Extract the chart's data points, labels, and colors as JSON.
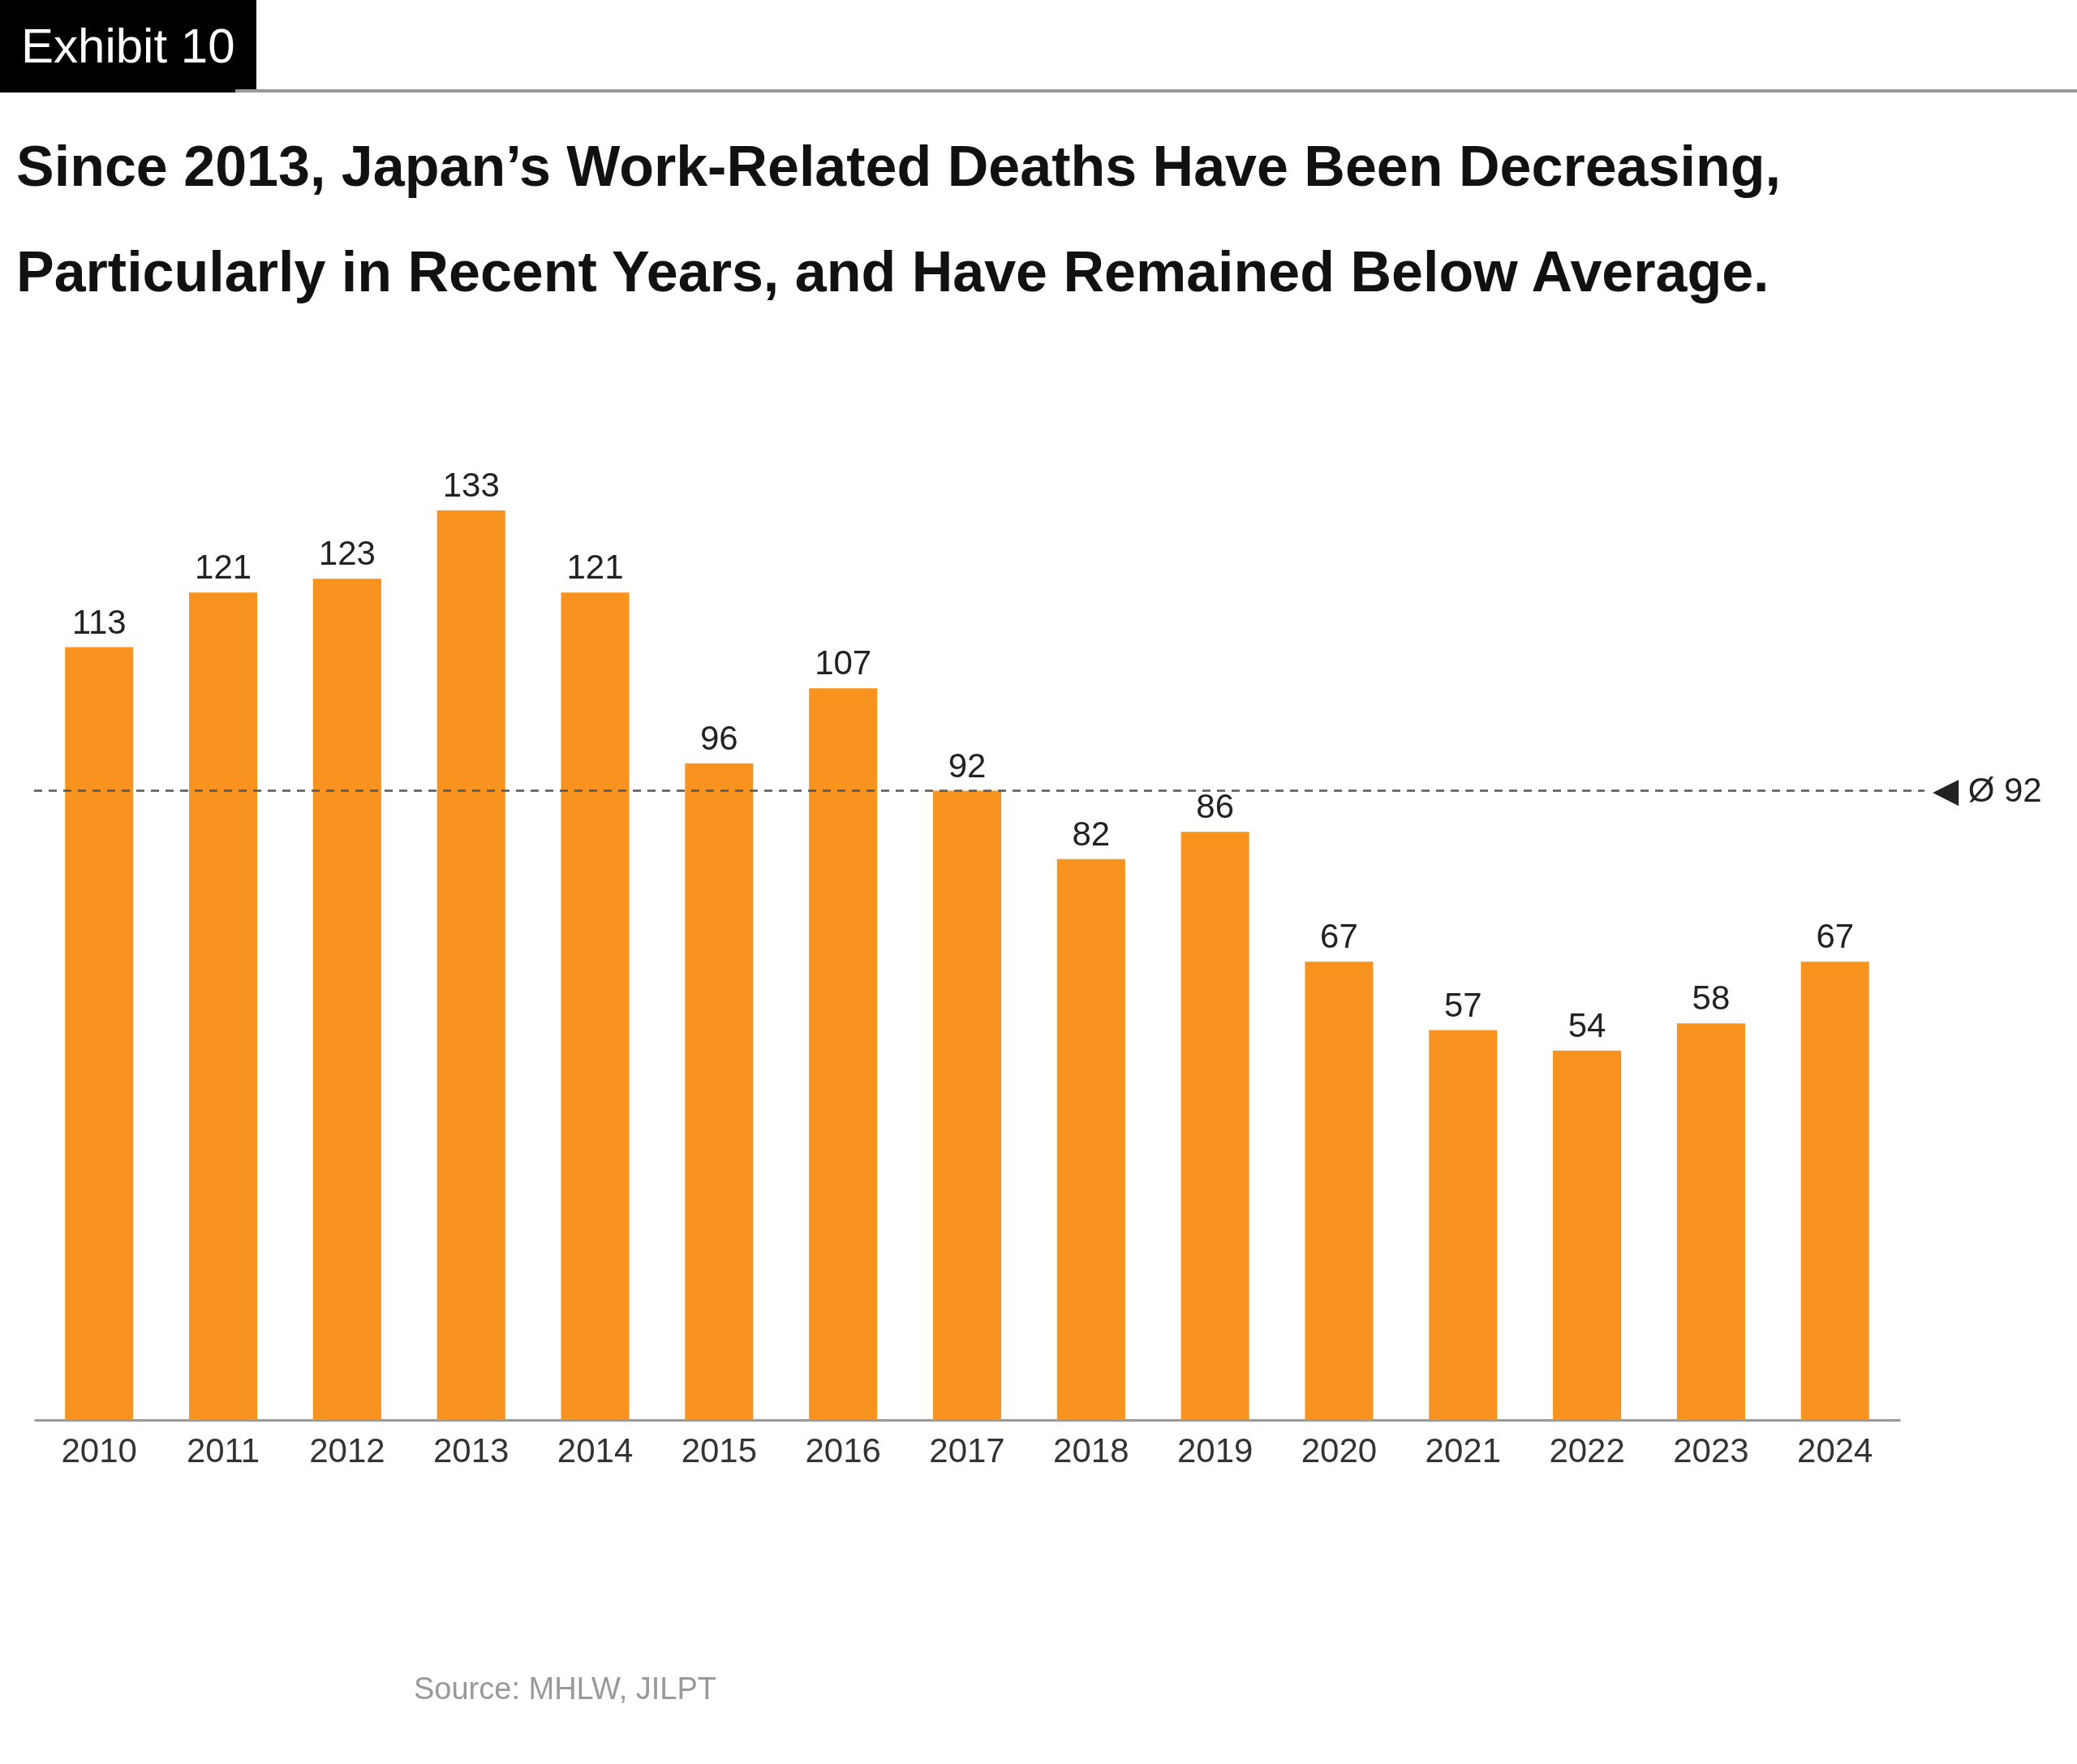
{
  "chart_data": {
    "type": "bar",
    "title": "Since 2013, Japan’s Work-Related Deaths Have Been Decreasing, Particularly in Recent Years, and Have Remained Below Average.",
    "annotations": [
      "Exhibit 10",
      "Source: MHLW, JILPT"
    ],
    "categories": [
      "2010",
      "2011",
      "2012",
      "2013",
      "2014",
      "2015",
      "2016",
      "2017",
      "2018",
      "2019",
      "2020",
      "2021",
      "2022",
      "2023",
      "2024"
    ],
    "values": [
      113,
      121,
      123,
      133,
      121,
      96,
      107,
      92,
      82,
      86,
      67,
      57,
      54,
      58,
      67
    ],
    "color": "#f7931e",
    "data_labels": true,
    "ref_lines": [
      {
        "axis": "y",
        "value": 92,
        "label": "◀ Ø 92",
        "color": "#555555",
        "line_style": "dashed"
      }
    ]
  }
}
